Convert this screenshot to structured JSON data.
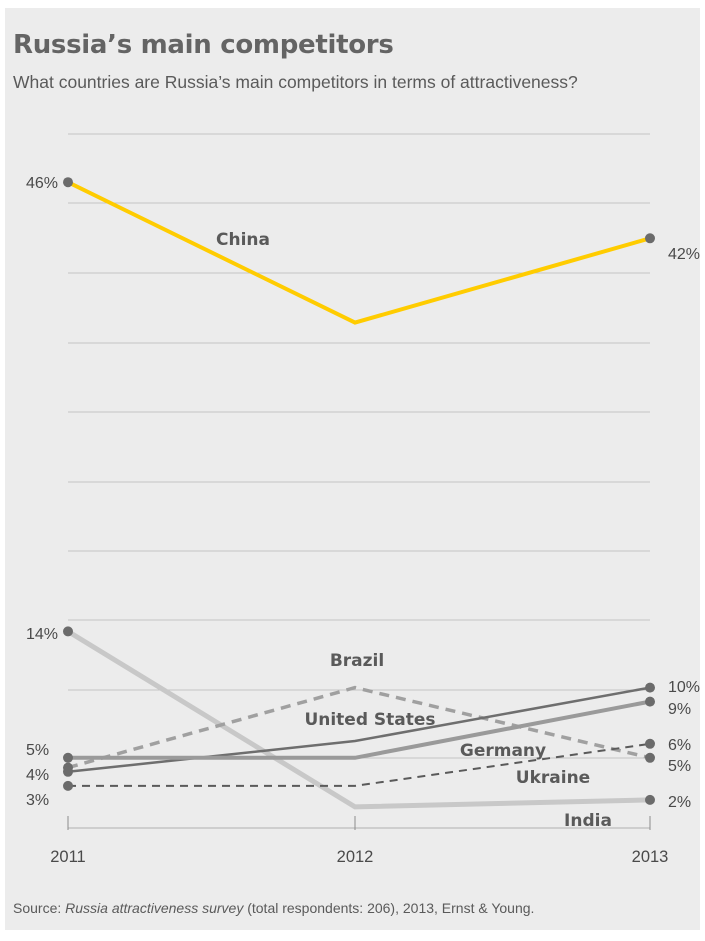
{
  "title": "Russia’s main competitors",
  "subtitle": "What countries are Russia’s main competitors in terms of attractiveness?",
  "source": {
    "prefix": "Source: ",
    "italic": "Russia attractiveness survey",
    "suffix": " (total respondents: 206), 2013, Ernst & Young."
  },
  "chart_data": {
    "type": "line",
    "x": [
      "2011",
      "2012",
      "2013"
    ],
    "ylim": [
      0,
      50
    ],
    "grid": true,
    "series": [
      {
        "name": "China",
        "values": [
          46,
          36,
          42
        ],
        "color": "#ffcc00",
        "dash": false,
        "start_label": "46%",
        "end_label": "42%"
      },
      {
        "name": "India",
        "values": [
          14,
          1.5,
          2
        ],
        "color": "#c8c8c8",
        "dash": false,
        "start_label": "14%",
        "end_label": "2%"
      },
      {
        "name": "Brazil",
        "values": [
          4.3,
          10,
          5
        ],
        "color": "#a0a0a0",
        "dash": true,
        "start_label": "",
        "end_label": "5%"
      },
      {
        "name": "United States",
        "values": [
          4,
          6.2,
          10
        ],
        "color": "#6e6e6e",
        "dash": false,
        "start_label": "4%",
        "end_label": "10%"
      },
      {
        "name": "Germany",
        "values": [
          5,
          5,
          9
        ],
        "color": "#9a9a9a",
        "dash": false,
        "start_label": "5%",
        "end_label": "9%"
      },
      {
        "name": "Ukraine",
        "values": [
          3,
          3,
          6
        ],
        "color": "#5a5a5a",
        "dash": true,
        "start_label": "3%",
        "end_label": "6%"
      }
    ]
  }
}
